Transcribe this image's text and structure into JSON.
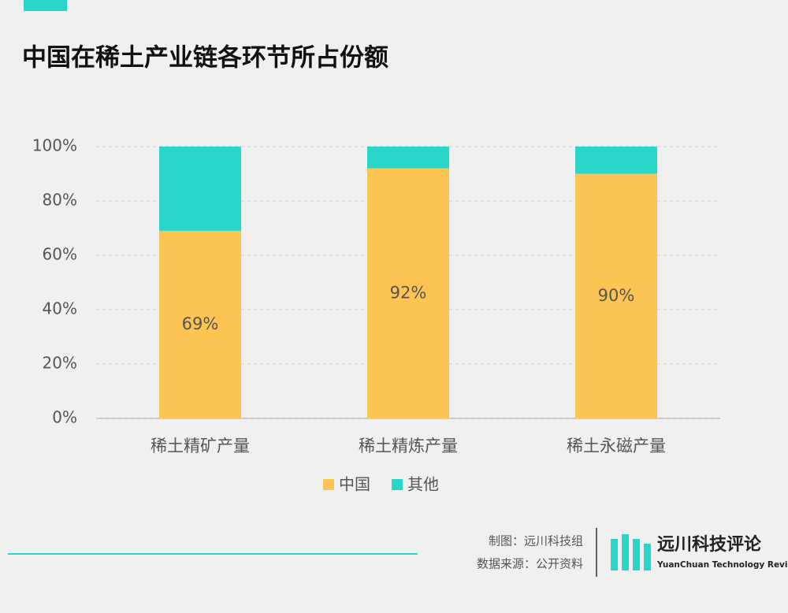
{
  "chart_data": {
    "type": "stacked_bar",
    "title": "中国在稀土产业链各环节所占份额",
    "categories": [
      "稀土精矿产量",
      "稀土精炼产量",
      "稀土永磁产量"
    ],
    "series": [
      {
        "name": "中国",
        "color": "#fcc453",
        "values": [
          69,
          92,
          90
        ],
        "value_labels": [
          "69%",
          "92%",
          "90%"
        ]
      },
      {
        "name": "其他",
        "color": "#2ad6c9",
        "values": [
          31,
          8,
          10
        ]
      }
    ],
    "ylim": [
      0,
      100
    ],
    "yticks": [
      {
        "value": 0,
        "label": "0%"
      },
      {
        "value": 20,
        "label": "20%"
      },
      {
        "value": 40,
        "label": "40%"
      },
      {
        "value": 60,
        "label": "60%"
      },
      {
        "value": 80,
        "label": "80%"
      },
      {
        "value": 100,
        "label": "100%"
      }
    ],
    "grid": true,
    "legend": "bottom"
  },
  "footer": {
    "credit": "制图：远川科技组",
    "source": "数据来源：公开资料",
    "brand": "远川科技评论",
    "brand_en": "YuanChuan Technology Review"
  }
}
